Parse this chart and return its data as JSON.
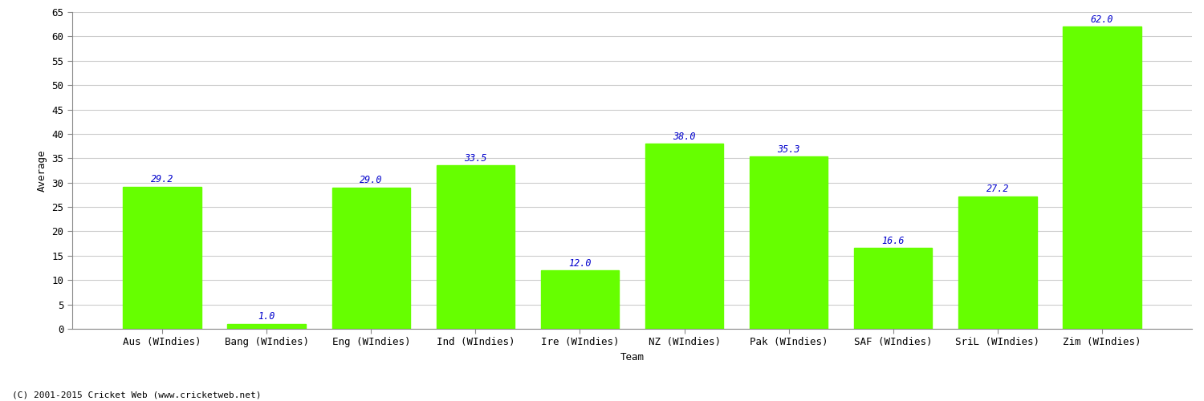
{
  "categories": [
    "Aus (WIndies)",
    "Bang (WIndies)",
    "Eng (WIndies)",
    "Ind (WIndies)",
    "Ire (WIndies)",
    "NZ (WIndies)",
    "Pak (WIndies)",
    "SAF (WIndies)",
    "SriL (WIndies)",
    "Zim (WIndies)"
  ],
  "values": [
    29.2,
    1.0,
    29.0,
    33.5,
    12.0,
    38.0,
    35.3,
    16.6,
    27.2,
    62.0
  ],
  "bar_color": "#66ff00",
  "label_color": "#0000cc",
  "xlabel": "Team",
  "ylabel": "Average",
  "ylim": [
    0,
    65
  ],
  "yticks": [
    0,
    5,
    10,
    15,
    20,
    25,
    30,
    35,
    40,
    45,
    50,
    55,
    60,
    65
  ],
  "background_color": "#ffffff",
  "grid_color": "#cccccc",
  "footer": "(C) 2001-2015 Cricket Web (www.cricketweb.net)",
  "label_fontsize": 8.5,
  "axis_fontsize": 9,
  "footer_fontsize": 8
}
